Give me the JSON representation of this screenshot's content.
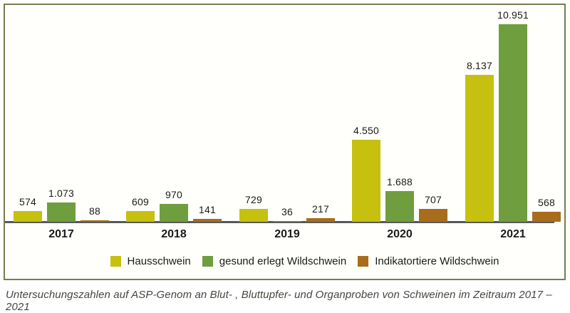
{
  "caption": "Untersuchungszahlen auf ASP-Genom an Blut- , Bluttupfer- und Organproben von Schweinen im Zeitraum 2017 – 2021",
  "colors": {
    "hausschwein": "#c6c00f",
    "gesund_erlegt_wildschwein": "#6f9e3e",
    "indikatortiere_wildschwein": "#a96c1c",
    "box_border": "#7b7a4f",
    "axis_line": "#58585a",
    "label_text": "#1a1a1a",
    "caption_text": "#45453f"
  },
  "chart_data": {
    "type": "bar",
    "categories": [
      "2017",
      "2018",
      "2019",
      "2020",
      "2021"
    ],
    "series": [
      {
        "name": "Hausschwein",
        "color": "#c6c00f",
        "values": [
          574,
          609,
          729,
          4550,
          8137
        ],
        "labels": [
          "574",
          "609",
          "729",
          "4.550",
          "8.137"
        ]
      },
      {
        "name": "gesund erlegt Wildschwein",
        "color": "#6f9e3e",
        "values": [
          1073,
          970,
          36,
          1688,
          10951
        ],
        "labels": [
          "1.073",
          "970",
          "36",
          "1.688",
          "10.951"
        ]
      },
      {
        "name": "Indikatortiere Wildschwein",
        "color": "#a96c1c",
        "values": [
          88,
          141,
          217,
          707,
          568
        ],
        "labels": [
          "88",
          "141",
          "217",
          "707",
          "568"
        ]
      }
    ],
    "ylim": [
      0,
      11000
    ],
    "grid": false,
    "legend_position": "bottom",
    "value_labels": true,
    "title": "",
    "xlabel": "",
    "ylabel": ""
  }
}
